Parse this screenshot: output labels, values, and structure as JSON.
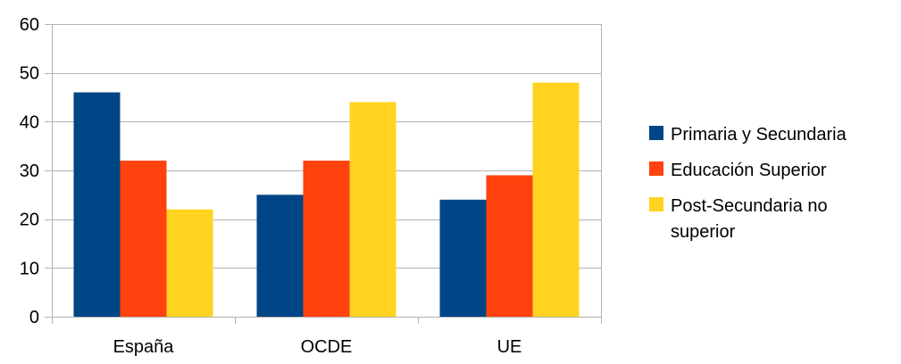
{
  "chart_data": {
    "type": "bar",
    "categories": [
      "España",
      "OCDE",
      "UE"
    ],
    "series": [
      {
        "name": "Primaria y Secundaria",
        "values": [
          46,
          25,
          24
        ],
        "color": "#004586"
      },
      {
        "name": "Educación Superior",
        "values": [
          32,
          32,
          29
        ],
        "color": "#ff420e"
      },
      {
        "name": "Post-Secundaria no superior",
        "values": [
          22,
          44,
          48
        ],
        "color": "#ffd320"
      }
    ],
    "ylim": [
      0,
      60
    ],
    "yticks": [
      0,
      10,
      20,
      30,
      40,
      50,
      60
    ],
    "grid": true,
    "legend_position": "right"
  },
  "legend": {
    "items": [
      {
        "lines": [
          "Primaria y Secundaria"
        ]
      },
      {
        "lines": [
          "Educación Superior"
        ]
      },
      {
        "lines": [
          "Post-Secundaria no",
          "superior"
        ]
      }
    ]
  }
}
